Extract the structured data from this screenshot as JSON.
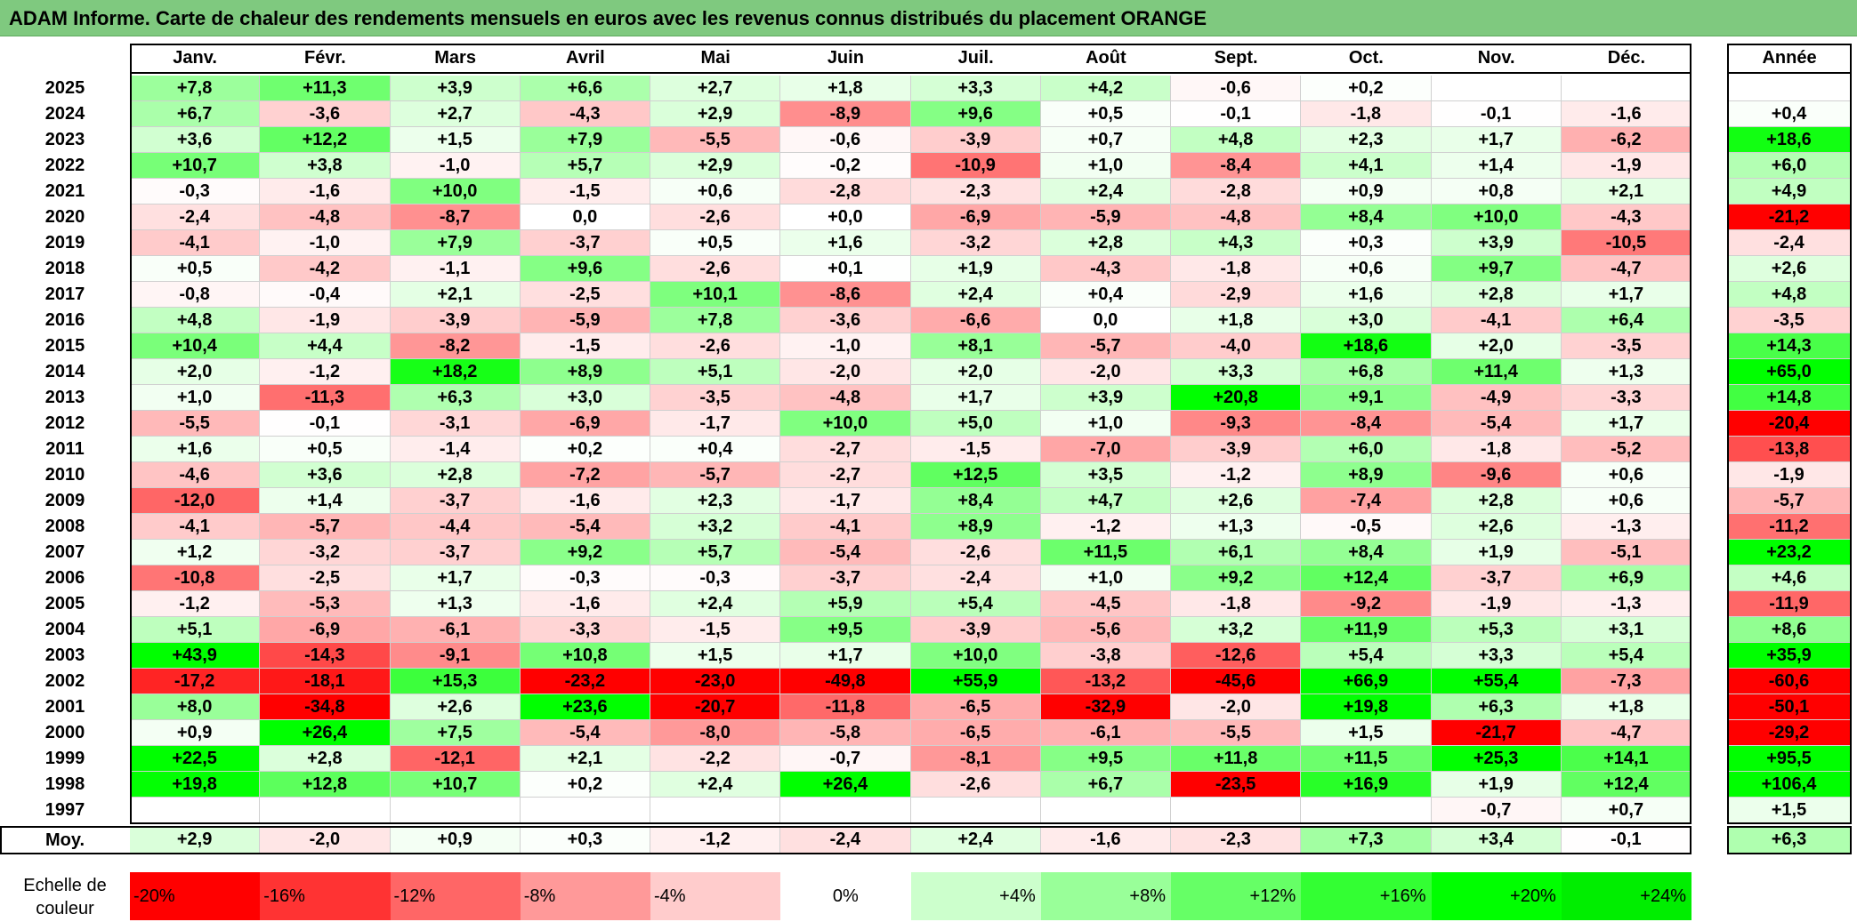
{
  "title": "ADAM Informe. Carte de chaleur des rendements mensuels en euros avec les revenus connus distribués du placement ORANGE",
  "chart_data": {
    "type": "heatmap",
    "title": "ADAM Informe. Carte de chaleur des rendements mensuels en euros avec les revenus connus distribués du placement ORANGE",
    "months": [
      "Janv.",
      "Févr.",
      "Mars",
      "Avril",
      "Mai",
      "Juin",
      "Juil.",
      "Août",
      "Sept.",
      "Oct.",
      "Nov.",
      "Déc."
    ],
    "year_col_label": "Année",
    "rows": [
      {
        "year": "2025",
        "values": [
          "+7,8",
          "+11,3",
          "+3,9",
          "+6,6",
          "+2,7",
          "+1,8",
          "+3,3",
          "+4,2",
          "-0,6",
          "+0,2",
          "",
          ""
        ],
        "annual": ""
      },
      {
        "year": "2024",
        "values": [
          "+6,7",
          "-3,6",
          "+2,7",
          "-4,3",
          "+2,9",
          "-8,9",
          "+9,6",
          "+0,5",
          "-0,1",
          "-1,8",
          "-0,1",
          "-1,6"
        ],
        "annual": "+0,4"
      },
      {
        "year": "2023",
        "values": [
          "+3,6",
          "+12,2",
          "+1,5",
          "+7,9",
          "-5,5",
          "-0,6",
          "-3,9",
          "+0,7",
          "+4,8",
          "+2,3",
          "+1,7",
          "-6,2"
        ],
        "annual": "+18,6"
      },
      {
        "year": "2022",
        "values": [
          "+10,7",
          "+3,8",
          "-1,0",
          "+5,7",
          "+2,9",
          "-0,2",
          "-10,9",
          "+1,0",
          "-8,4",
          "+4,1",
          "+1,4",
          "-1,9"
        ],
        "annual": "+6,0"
      },
      {
        "year": "2021",
        "values": [
          "-0,3",
          "-1,6",
          "+10,0",
          "-1,5",
          "+0,6",
          "-2,8",
          "-2,3",
          "+2,4",
          "-2,8",
          "+0,9",
          "+0,8",
          "+2,1"
        ],
        "annual": "+4,9"
      },
      {
        "year": "2020",
        "values": [
          "-2,4",
          "-4,8",
          "-8,7",
          "0,0",
          "-2,6",
          "+0,0",
          "-6,9",
          "-5,9",
          "-4,8",
          "+8,4",
          "+10,0",
          "-4,3"
        ],
        "annual": "-21,2"
      },
      {
        "year": "2019",
        "values": [
          "-4,1",
          "-1,0",
          "+7,9",
          "-3,7",
          "+0,5",
          "+1,6",
          "-3,2",
          "+2,8",
          "+4,3",
          "+0,3",
          "+3,9",
          "-10,5"
        ],
        "annual": "-2,4"
      },
      {
        "year": "2018",
        "values": [
          "+0,5",
          "-4,2",
          "-1,1",
          "+9,6",
          "-2,6",
          "+0,1",
          "+1,9",
          "-4,3",
          "-1,8",
          "+0,6",
          "+9,7",
          "-4,7"
        ],
        "annual": "+2,6"
      },
      {
        "year": "2017",
        "values": [
          "-0,8",
          "-0,4",
          "+2,1",
          "-2,5",
          "+10,1",
          "-8,6",
          "+2,4",
          "+0,4",
          "-2,9",
          "+1,6",
          "+2,8",
          "+1,7"
        ],
        "annual": "+4,8"
      },
      {
        "year": "2016",
        "values": [
          "+4,8",
          "-1,9",
          "-3,9",
          "-5,9",
          "+7,8",
          "-3,6",
          "-6,6",
          "0,0",
          "+1,8",
          "+3,0",
          "-4,1",
          "+6,4"
        ],
        "annual": "-3,5"
      },
      {
        "year": "2015",
        "values": [
          "+10,4",
          "+4,4",
          "-8,2",
          "-1,5",
          "-2,6",
          "-1,0",
          "+8,1",
          "-5,7",
          "-4,0",
          "+18,6",
          "+2,0",
          "-3,5"
        ],
        "annual": "+14,3"
      },
      {
        "year": "2014",
        "values": [
          "+2,0",
          "-1,2",
          "+18,2",
          "+8,9",
          "+5,1",
          "-2,0",
          "+2,0",
          "-2,0",
          "+3,3",
          "+6,8",
          "+11,4",
          "+1,3"
        ],
        "annual": "+65,0"
      },
      {
        "year": "2013",
        "values": [
          "+1,0",
          "-11,3",
          "+6,3",
          "+3,0",
          "-3,5",
          "-4,8",
          "+1,7",
          "+3,9",
          "+20,8",
          "+9,1",
          "-4,9",
          "-3,3"
        ],
        "annual": "+14,8"
      },
      {
        "year": "2012",
        "values": [
          "-5,5",
          "-0,1",
          "-3,1",
          "-6,9",
          "-1,7",
          "+10,0",
          "+5,0",
          "+1,0",
          "-9,3",
          "-8,4",
          "-5,4",
          "+1,7"
        ],
        "annual": "-20,4"
      },
      {
        "year": "2011",
        "values": [
          "+1,6",
          "+0,5",
          "-1,4",
          "+0,2",
          "+0,4",
          "-2,7",
          "-1,5",
          "-7,0",
          "-3,9",
          "+6,0",
          "-1,8",
          "-5,2"
        ],
        "annual": "-13,8"
      },
      {
        "year": "2010",
        "values": [
          "-4,6",
          "+3,6",
          "+2,8",
          "-7,2",
          "-5,7",
          "-2,7",
          "+12,5",
          "+3,5",
          "-1,2",
          "+8,9",
          "-9,6",
          "+0,6"
        ],
        "annual": "-1,9"
      },
      {
        "year": "2009",
        "values": [
          "-12,0",
          "+1,4",
          "-3,7",
          "-1,6",
          "+2,3",
          "-1,7",
          "+8,4",
          "+4,7",
          "+2,6",
          "-7,4",
          "+2,8",
          "+0,6"
        ],
        "annual": "-5,7"
      },
      {
        "year": "2008",
        "values": [
          "-4,1",
          "-5,7",
          "-4,4",
          "-5,4",
          "+3,2",
          "-4,1",
          "+8,9",
          "-1,2",
          "+1,3",
          "-0,5",
          "+2,6",
          "-1,3"
        ],
        "annual": "-11,2"
      },
      {
        "year": "2007",
        "values": [
          "+1,2",
          "-3,2",
          "-3,7",
          "+9,2",
          "+5,7",
          "-5,4",
          "-2,6",
          "+11,5",
          "+6,1",
          "+8,4",
          "+1,9",
          "-5,1"
        ],
        "annual": "+23,2"
      },
      {
        "year": "2006",
        "values": [
          "-10,8",
          "-2,5",
          "+1,7",
          "-0,3",
          "-0,3",
          "-3,7",
          "-2,4",
          "+1,0",
          "+9,2",
          "+12,4",
          "-3,7",
          "+6,9"
        ],
        "annual": "+4,6"
      },
      {
        "year": "2005",
        "values": [
          "-1,2",
          "-5,3",
          "+1,3",
          "-1,6",
          "+2,4",
          "+5,9",
          "+5,4",
          "-4,5",
          "-1,8",
          "-9,2",
          "-1,9",
          "-1,3"
        ],
        "annual": "-11,9"
      },
      {
        "year": "2004",
        "values": [
          "+5,1",
          "-6,9",
          "-6,1",
          "-3,3",
          "-1,5",
          "+9,5",
          "-3,9",
          "-5,6",
          "+3,2",
          "+11,9",
          "+5,3",
          "+3,1"
        ],
        "annual": "+8,6"
      },
      {
        "year": "2003",
        "values": [
          "+43,9",
          "-14,3",
          "-9,1",
          "+10,8",
          "+1,5",
          "+1,7",
          "+10,0",
          "-3,8",
          "-12,6",
          "+5,4",
          "+3,3",
          "+5,4"
        ],
        "annual": "+35,9"
      },
      {
        "year": "2002",
        "values": [
          "-17,2",
          "-18,1",
          "+15,3",
          "-23,2",
          "-23,0",
          "-49,8",
          "+55,9",
          "-13,2",
          "-45,6",
          "+66,9",
          "+55,4",
          "-7,3"
        ],
        "annual": "-60,6"
      },
      {
        "year": "2001",
        "values": [
          "+8,0",
          "-34,8",
          "+2,6",
          "+23,6",
          "-20,7",
          "-11,8",
          "-6,5",
          "-32,9",
          "-2,0",
          "+19,8",
          "+6,3",
          "+1,8"
        ],
        "annual": "-50,1"
      },
      {
        "year": "2000",
        "values": [
          "+0,9",
          "+26,4",
          "+7,5",
          "-5,4",
          "-8,0",
          "-5,8",
          "-6,5",
          "-6,1",
          "-5,5",
          "+1,5",
          "-21,7",
          "-4,7"
        ],
        "annual": "-29,2"
      },
      {
        "year": "1999",
        "values": [
          "+22,5",
          "+2,8",
          "-12,1",
          "+2,1",
          "-2,2",
          "-0,7",
          "-8,1",
          "+9,5",
          "+11,8",
          "+11,5",
          "+25,3",
          "+14,1"
        ],
        "annual": "+95,5"
      },
      {
        "year": "1998",
        "values": [
          "+19,8",
          "+12,8",
          "+10,7",
          "+0,2",
          "+2,4",
          "+26,4",
          "-2,6",
          "+6,7",
          "-23,5",
          "+16,9",
          "+1,9",
          "+12,4"
        ],
        "annual": "+106,4"
      },
      {
        "year": "1997",
        "values": [
          "",
          "",
          "",
          "",
          "",
          "",
          "",
          "",
          "",
          "",
          "-0,7",
          "+0,7"
        ],
        "annual": "+1,5"
      }
    ],
    "average": {
      "label": "Moy.",
      "values": [
        "+2,9",
        "-2,0",
        "+0,9",
        "+0,3",
        "-1,2",
        "-2,4",
        "+2,4",
        "-1,6",
        "-2,3",
        "+7,3",
        "+3,4",
        "-0,1"
      ],
      "annual": "+6,3"
    },
    "color_scale": {
      "label": "Echelle de couleur",
      "stops": [
        {
          "label": "-20%",
          "value": -20,
          "color": "#ff0000"
        },
        {
          "label": "-16%",
          "value": -16,
          "color": "#ff3333"
        },
        {
          "label": "-12%",
          "value": -12,
          "color": "#ff6666"
        },
        {
          "label": "-8%",
          "value": -8,
          "color": "#ff9999"
        },
        {
          "label": "-4%",
          "value": -4,
          "color": "#ffcccc"
        },
        {
          "label": "0%",
          "value": 0,
          "color": "#ffffff"
        },
        {
          "label": "+4%",
          "value": 4,
          "color": "#ccffcc"
        },
        {
          "label": "+8%",
          "value": 8,
          "color": "#99ff99"
        },
        {
          "label": "+12%",
          "value": 12,
          "color": "#66ff66"
        },
        {
          "label": "+16%",
          "value": 16,
          "color": "#33ff33"
        },
        {
          "label": "+20%",
          "value": 20,
          "color": "#00ff00"
        },
        {
          "label": "+24%",
          "value": 24,
          "color": "#00ee00"
        }
      ]
    }
  }
}
